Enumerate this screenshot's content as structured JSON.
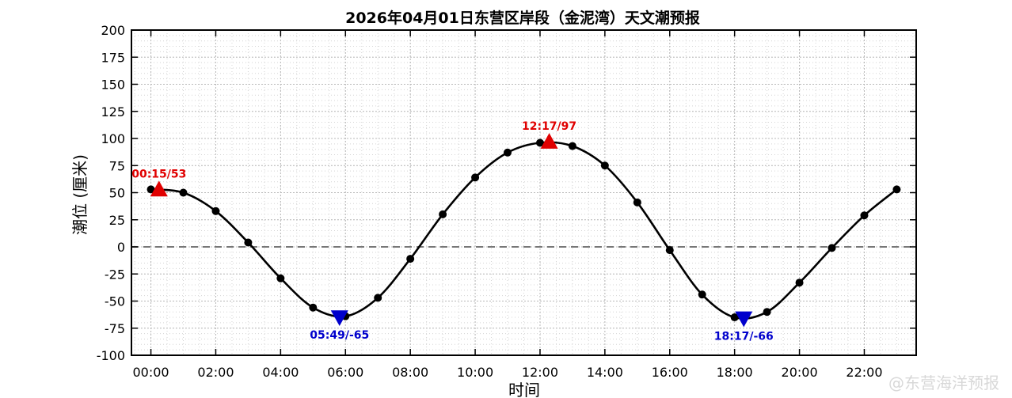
{
  "chart_data": {
    "type": "line",
    "title": "2026年04月01日东营区岸段（金泥湾）天文潮预报",
    "xlabel": "时间",
    "ylabel": "潮位 (厘米)",
    "x_ticks": [
      "00:00",
      "02:00",
      "04:00",
      "06:00",
      "08:00",
      "10:00",
      "12:00",
      "14:00",
      "16:00",
      "18:00",
      "20:00",
      "22:00"
    ],
    "y_ticks": [
      200,
      175,
      150,
      125,
      100,
      75,
      50,
      25,
      0,
      -25,
      -50,
      -75,
      -100
    ],
    "ylim": [
      -100,
      200
    ],
    "xlim_hours": [
      -0.6,
      23.6
    ],
    "grid": true,
    "zero_line": true,
    "series": [
      {
        "x_hours": [
          0,
          1,
          2,
          3,
          4,
          5,
          6,
          7,
          8,
          9,
          10,
          11,
          12,
          13,
          14,
          15,
          16,
          17,
          18,
          19,
          20,
          21,
          22,
          23
        ],
        "values": [
          53,
          50,
          33,
          4,
          -29,
          -56,
          -64,
          -47,
          -11,
          30,
          64,
          87,
          96,
          93,
          75,
          41,
          -3,
          -44,
          -65,
          -60,
          -33,
          -1,
          29,
          53
        ],
        "color": "#000000"
      }
    ],
    "extremes": [
      {
        "time": "00:15",
        "hour": 0.25,
        "value": 53,
        "label": "00:15/53",
        "kind": "high",
        "color": "#e00000"
      },
      {
        "time": "05:49",
        "hour": 5.8167,
        "value": -65,
        "label": "05:49/-65",
        "kind": "low",
        "color": "#0000cc"
      },
      {
        "time": "12:17",
        "hour": 12.2833,
        "value": 97,
        "label": "12:17/97",
        "kind": "high",
        "color": "#e00000"
      },
      {
        "time": "18:17",
        "hour": 18.2833,
        "value": -66,
        "label": "18:17/-66",
        "kind": "low",
        "color": "#0000cc"
      }
    ]
  },
  "watermark": {
    "text": "@东营海洋预报"
  }
}
